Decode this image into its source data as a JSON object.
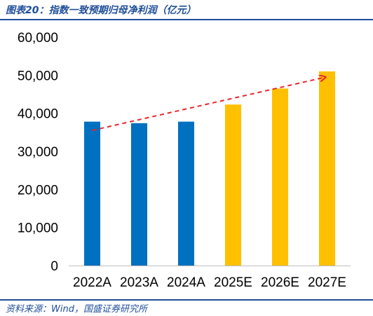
{
  "figure": {
    "title": "图表20：指数一致预期归母净利润（亿元）",
    "source": "资料来源：Wind，国盛证券研究所"
  },
  "chart_data": {
    "type": "bar",
    "title": "",
    "xlabel": "",
    "ylabel": "",
    "categories": [
      "2022A",
      "2023A",
      "2024A",
      "2025E",
      "2026E",
      "2027E"
    ],
    "values": [
      37800,
      37400,
      37800,
      42300,
      46500,
      51000
    ],
    "ylim": [
      0,
      60000
    ],
    "yticks": [
      0,
      10000,
      20000,
      30000,
      40000,
      50000,
      60000
    ],
    "ytick_labels": [
      "0",
      "10,000",
      "20,000",
      "30,000",
      "40,000",
      "50,000",
      "60,000"
    ],
    "grid": false,
    "legend": "none",
    "colors": {
      "actual": "#0070c0",
      "estimate": "#ffc000",
      "trend": "#e8262b",
      "axis": "#bfbfbf"
    },
    "bar_kind": [
      "actual",
      "actual",
      "actual",
      "estimate",
      "estimate",
      "estimate"
    ],
    "trend_arrow": {
      "from_value": 35500,
      "to_value": 49500,
      "style": "dashed"
    }
  }
}
